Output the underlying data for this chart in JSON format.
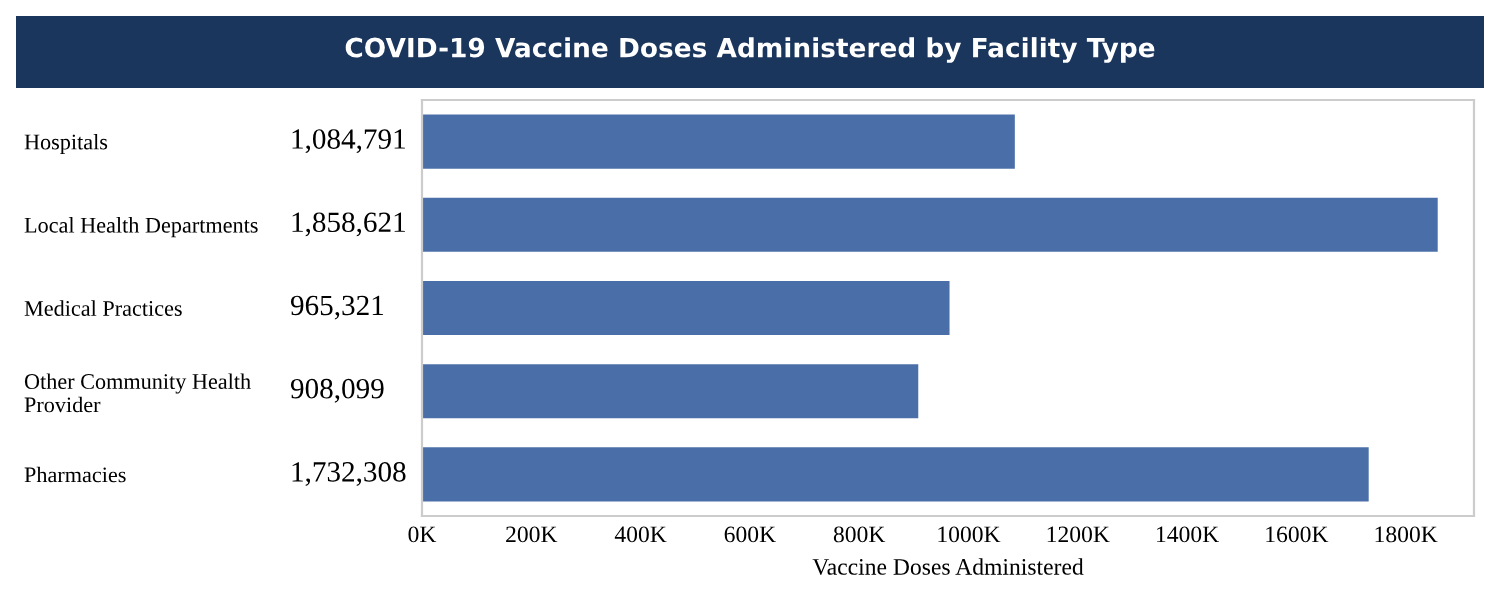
{
  "chart_data": {
    "type": "bar",
    "orientation": "horizontal",
    "title": "COVID-19 Vaccine Doses Administered by Facility Type",
    "xlabel": "Vaccine Doses Administered",
    "categories": [
      "Hospitals",
      "Local Health Departments",
      "Medical Practices",
      "Other Community Health\nProvider",
      "Pharmacies"
    ],
    "values": [
      1084791,
      1858621,
      965321,
      908099,
      1732308
    ],
    "value_labels": [
      "1,084,791",
      "1,858,621",
      "965,321",
      "908,099",
      "1,732,308"
    ],
    "color": "#4a6fa8",
    "xlim": [
      0,
      1925000
    ],
    "xticks": [
      {
        "value": 0,
        "label": "0K"
      },
      {
        "value": 200000,
        "label": "200K"
      },
      {
        "value": 400000,
        "label": "400K"
      },
      {
        "value": 600000,
        "label": "600K"
      },
      {
        "value": 800000,
        "label": "800K"
      },
      {
        "value": 1000000,
        "label": "1000K"
      },
      {
        "value": 1200000,
        "label": "1200K"
      },
      {
        "value": 1400000,
        "label": "1400K"
      },
      {
        "value": 1600000,
        "label": "1600K"
      },
      {
        "value": 1800000,
        "label": "1800K"
      }
    ],
    "grid": false,
    "legend": false
  }
}
